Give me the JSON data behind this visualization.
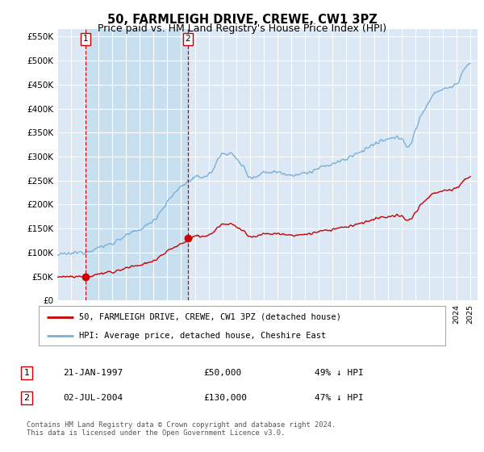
{
  "title": "50, FARMLEIGH DRIVE, CREWE, CW1 3PZ",
  "subtitle": "Price paid vs. HM Land Registry's House Price Index (HPI)",
  "title_fontsize": 10.5,
  "subtitle_fontsize": 9,
  "yticks": [
    0,
    50000,
    100000,
    150000,
    200000,
    250000,
    300000,
    350000,
    400000,
    450000,
    500000,
    550000
  ],
  "ytick_labels": [
    "£0",
    "£50K",
    "£100K",
    "£150K",
    "£200K",
    "£250K",
    "£300K",
    "£350K",
    "£400K",
    "£450K",
    "£500K",
    "£550K"
  ],
  "ylim_top": 565000,
  "xlim_start": 1995.0,
  "xlim_end": 2025.5,
  "background_color": "#dce9f5",
  "grid_color": "#ffffff",
  "hpi_line_color": "#7ab0d8",
  "price_line_color": "#cc0000",
  "shade_color": "#c8dff0",
  "sale1_x": 1997.055,
  "sale1_y": 50000,
  "sale2_x": 2004.5,
  "sale2_y": 130000,
  "legend_label_red": "50, FARMLEIGH DRIVE, CREWE, CW1 3PZ (detached house)",
  "legend_label_blue": "HPI: Average price, detached house, Cheshire East",
  "ann1_label": "1",
  "ann1_date": "21-JAN-1997",
  "ann1_price": "£50,000",
  "ann1_pct": "49% ↓ HPI",
  "ann2_label": "2",
  "ann2_date": "02-JUL-2004",
  "ann2_price": "£130,000",
  "ann2_pct": "47% ↓ HPI",
  "footer": "Contains HM Land Registry data © Crown copyright and database right 2024.\nThis data is licensed under the Open Government Licence v3.0."
}
